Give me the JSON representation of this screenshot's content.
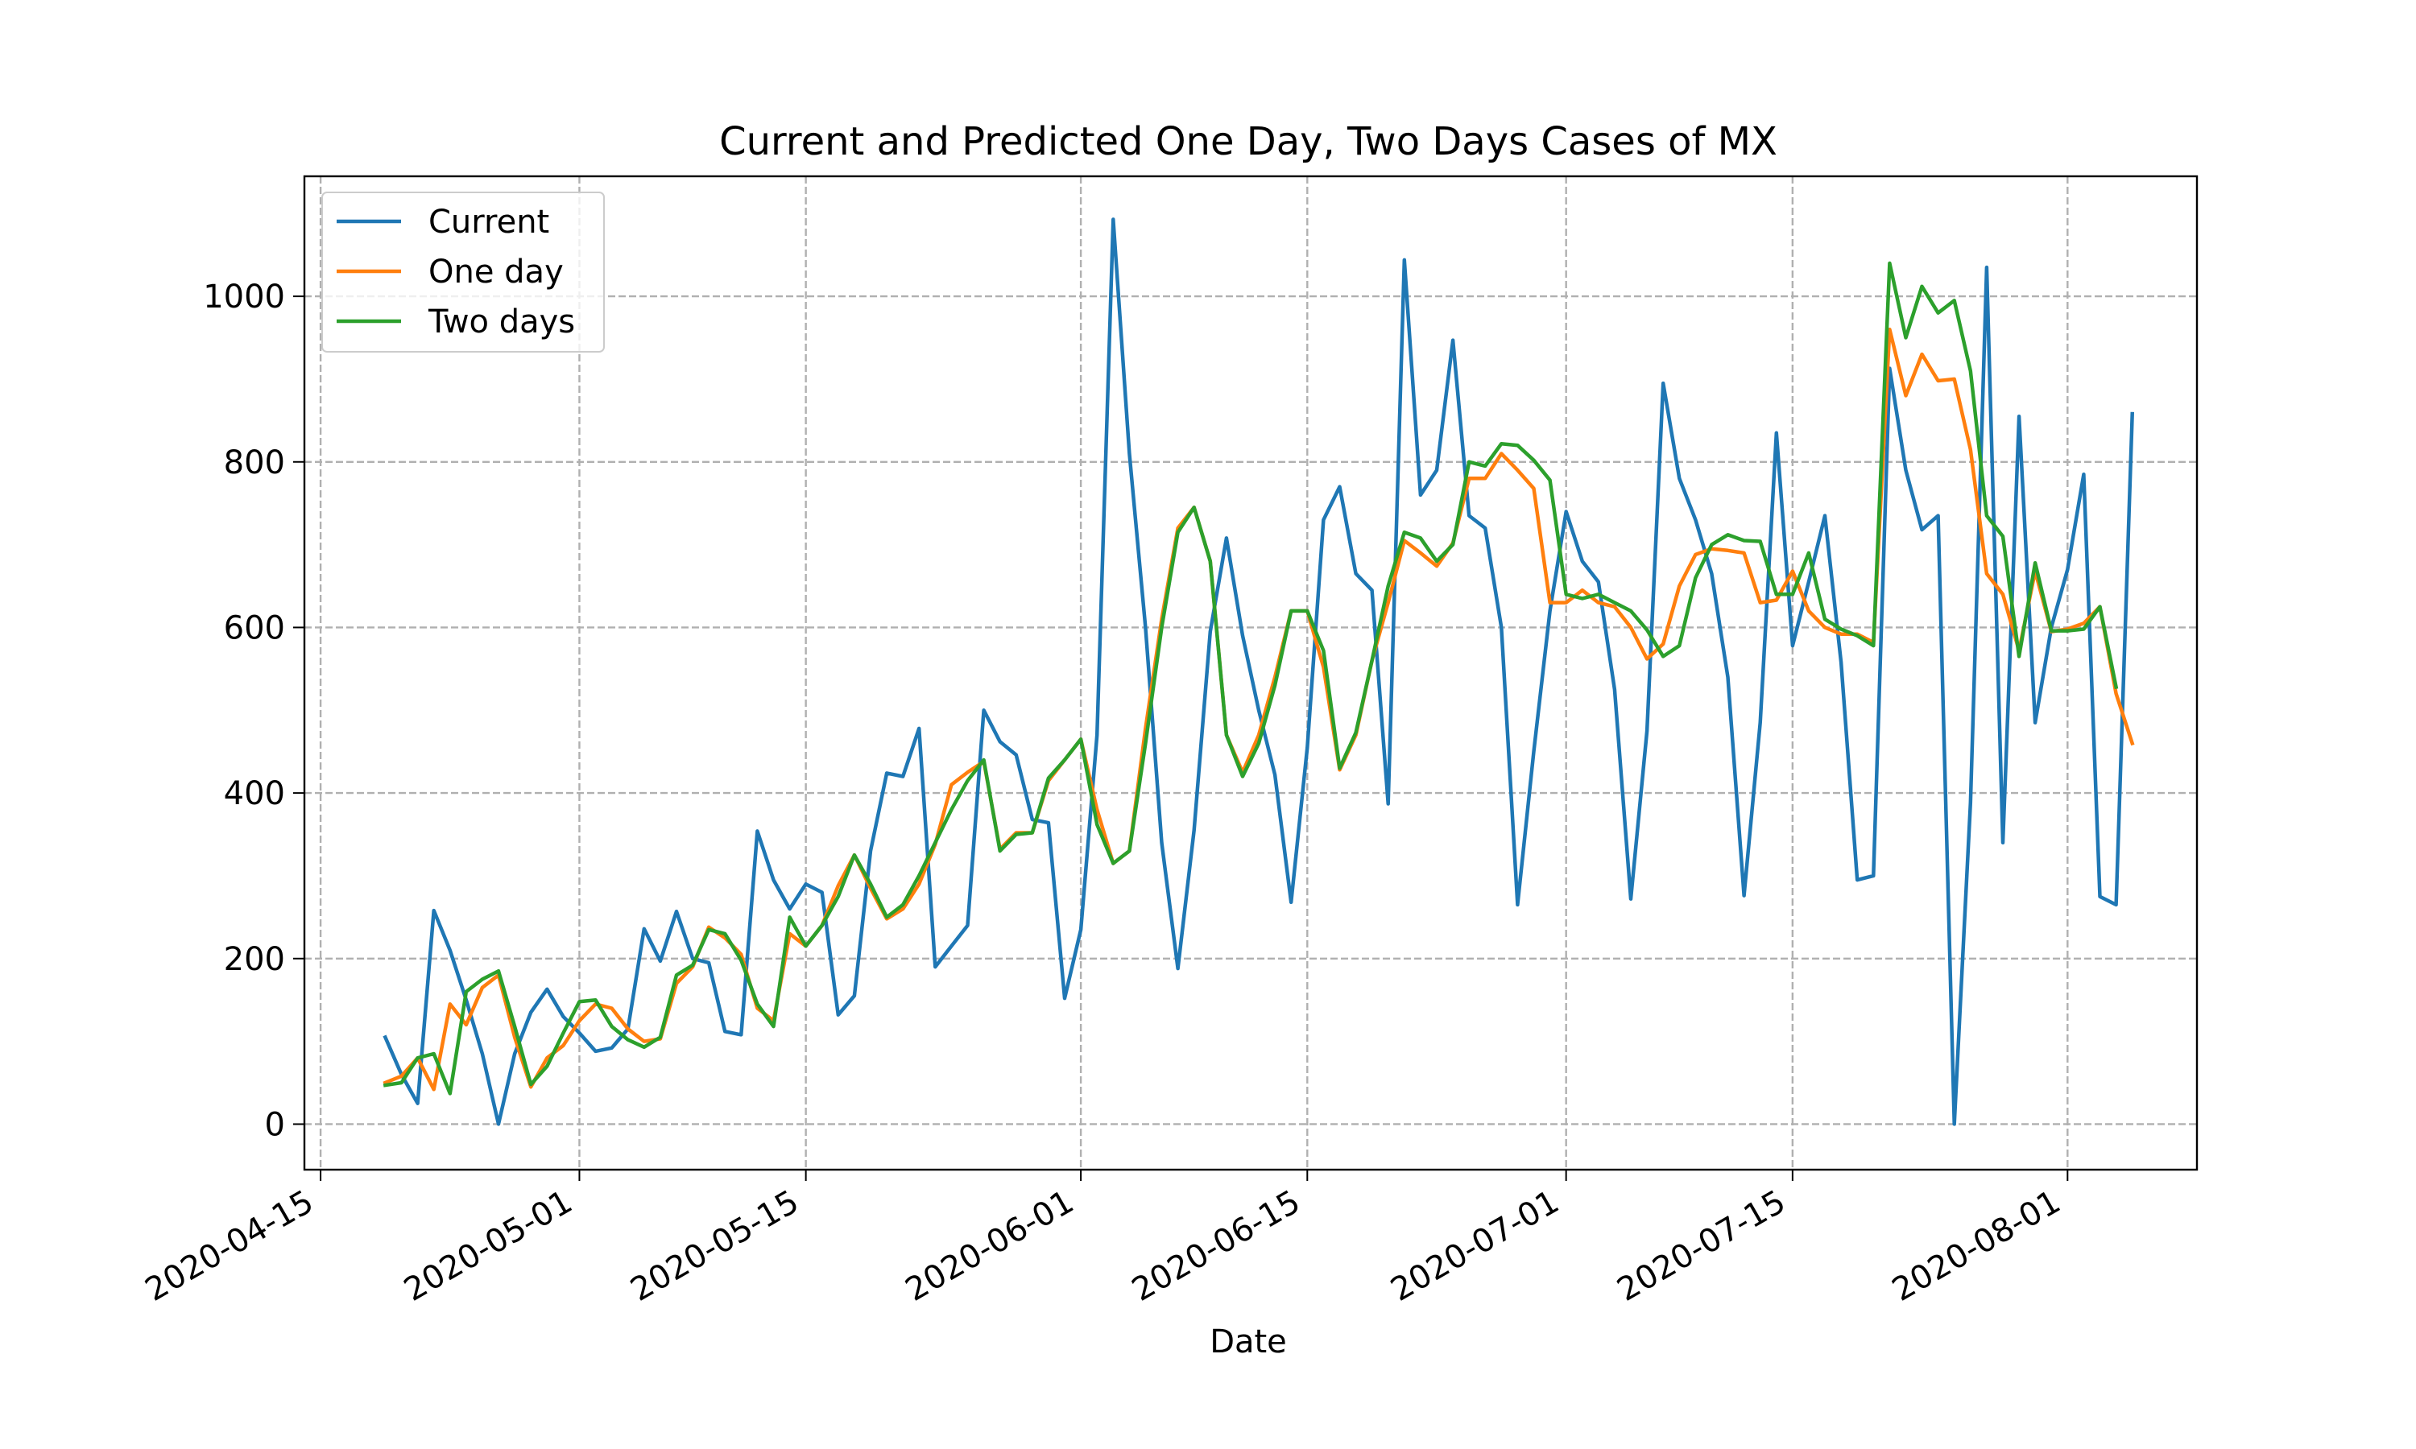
{
  "chart_data": {
    "type": "line",
    "title": "Current and Predicted One Day, Two Days Cases of MX",
    "xlabel": "Date",
    "ylabel": "",
    "x_start": "2020-04-19",
    "xlim": [
      "2020-04-14",
      "2020-08-09"
    ],
    "ylim": [
      -55,
      1145
    ],
    "x_ticks": [
      {
        "date": "2020-04-15",
        "label": "2020-04-15"
      },
      {
        "date": "2020-05-01",
        "label": "2020-05-01"
      },
      {
        "date": "2020-05-15",
        "label": "2020-05-15"
      },
      {
        "date": "2020-06-01",
        "label": "2020-06-01"
      },
      {
        "date": "2020-06-15",
        "label": "2020-06-15"
      },
      {
        "date": "2020-07-01",
        "label": "2020-07-01"
      },
      {
        "date": "2020-07-15",
        "label": "2020-07-15"
      },
      {
        "date": "2020-08-01",
        "label": "2020-08-01"
      }
    ],
    "y_ticks": [
      0,
      200,
      400,
      600,
      800,
      1000
    ],
    "grid": true,
    "legend_position": "top-left",
    "series": [
      {
        "name": "Current",
        "color": "#1f77b4",
        "values": [
          105,
          60,
          25,
          258,
          210,
          150,
          85,
          0,
          85,
          135,
          163,
          130,
          110,
          88,
          92,
          115,
          236,
          197,
          257,
          200,
          195,
          112,
          108,
          354,
          295,
          260,
          290,
          280,
          132,
          155,
          330,
          424,
          420,
          478,
          190,
          215,
          240,
          500,
          462,
          446,
          368,
          364,
          152,
          235,
          470,
          1093,
          810,
          600,
          340,
          188,
          355,
          595,
          708,
          590,
          500,
          422,
          268,
          455,
          730,
          770,
          665,
          645,
          387,
          1044,
          760,
          790,
          947,
          735,
          720,
          600,
          265,
          450,
          620,
          740,
          680,
          655,
          525,
          272,
          475,
          895,
          780,
          730,
          665,
          540,
          276,
          485,
          835,
          578,
          655,
          735,
          558,
          295,
          300,
          913,
          790,
          718,
          735,
          0,
          388,
          1035,
          340,
          855,
          485,
          600,
          670,
          785,
          275,
          265,
          858
        ]
      },
      {
        "name": "One day",
        "color": "#ff7f0e",
        "values": [
          50,
          58,
          80,
          42,
          145,
          120,
          165,
          180,
          105,
          45,
          80,
          95,
          125,
          145,
          140,
          115,
          100,
          103,
          170,
          190,
          238,
          225,
          205,
          140,
          125,
          230,
          215,
          240,
          288,
          325,
          285,
          248,
          260,
          290,
          338,
          410,
          425,
          438,
          332,
          352,
          352,
          415,
          440,
          465,
          380,
          315,
          330,
          478,
          610,
          720,
          745,
          680,
          470,
          425,
          470,
          540,
          620,
          620,
          552,
          428,
          470,
          560,
          630,
          705,
          690,
          674,
          702,
          780,
          780,
          810,
          790,
          768,
          630,
          630,
          645,
          630,
          625,
          600,
          562,
          580,
          650,
          688,
          695,
          693,
          690,
          630,
          633,
          668,
          620,
          600,
          592,
          592,
          582,
          960,
          880,
          930,
          898,
          900,
          815,
          665,
          640,
          572,
          668,
          595,
          598,
          605,
          625,
          520,
          460
        ]
      },
      {
        "name": "Two days",
        "color": "#2ca02c",
        "values": [
          47,
          50,
          80,
          85,
          37,
          160,
          175,
          185,
          118,
          48,
          70,
          110,
          148,
          150,
          118,
          102,
          93,
          105,
          180,
          192,
          235,
          230,
          198,
          145,
          118,
          250,
          215,
          240,
          275,
          325,
          290,
          250,
          265,
          300,
          340,
          380,
          415,
          440,
          330,
          350,
          352,
          418,
          440,
          465,
          362,
          315,
          330,
          460,
          600,
          715,
          745,
          680,
          470,
          420,
          460,
          530,
          620,
          620,
          572,
          430,
          473,
          560,
          650,
          715,
          708,
          680,
          700,
          800,
          795,
          822,
          820,
          802,
          778,
          640,
          635,
          640,
          630,
          620,
          597,
          565,
          578,
          660,
          700,
          712,
          705,
          704,
          640,
          640,
          690,
          610,
          598,
          590,
          578,
          1040,
          950,
          1012,
          980,
          995,
          910,
          735,
          710,
          565,
          678,
          596,
          596,
          598,
          625,
          528
        ]
      }
    ]
  }
}
